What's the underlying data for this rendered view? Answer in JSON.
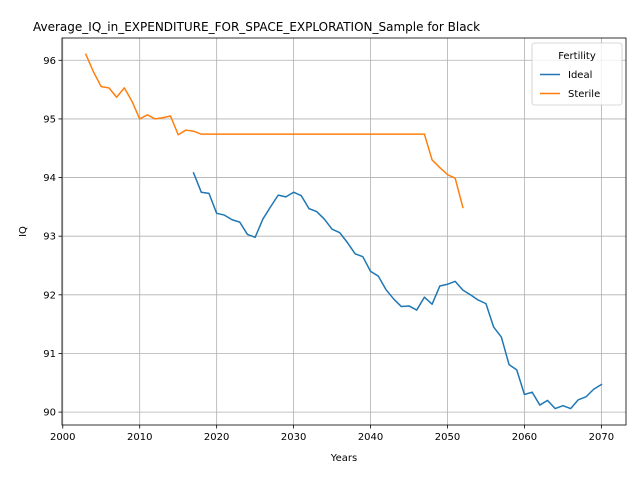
{
  "chart_data": {
    "type": "line",
    "title": "Average_IQ_in_EXPENDITURE_FOR_SPACE_EXPLORATION_Sample for Black",
    "xlabel": "Years",
    "ylabel": "IQ",
    "xlim": [
      1999.9,
      2073.2
    ],
    "ylim": [
      89.78,
      96.38
    ],
    "x_ticks": [
      2000,
      2010,
      2020,
      2030,
      2040,
      2050,
      2060,
      2070
    ],
    "y_ticks": [
      90,
      91,
      92,
      93,
      94,
      95,
      96
    ],
    "grid": true,
    "legend": {
      "title": "Fertility",
      "placement": "top-right"
    },
    "series": [
      {
        "name": "Ideal",
        "color": "#1f77b4",
        "x": [
          2017,
          2018,
          2019,
          2020,
          2021,
          2022,
          2023,
          2024,
          2025,
          2026,
          2027,
          2028,
          2029,
          2030,
          2031,
          2032,
          2033,
          2034,
          2035,
          2036,
          2037,
          2038,
          2039,
          2040,
          2041,
          2042,
          2043,
          2044,
          2045,
          2046,
          2047,
          2048,
          2049,
          2050,
          2051,
          2052,
          2053,
          2054,
          2055,
          2056,
          2057,
          2058,
          2059,
          2060,
          2061,
          2062,
          2063,
          2064,
          2065,
          2066,
          2067,
          2068,
          2069,
          2070
        ],
        "y": [
          94.08,
          93.75,
          93.73,
          93.39,
          93.36,
          93.28,
          93.24,
          93.03,
          92.98,
          93.29,
          93.5,
          93.7,
          93.67,
          93.75,
          93.69,
          93.47,
          93.42,
          93.29,
          93.12,
          93.06,
          92.89,
          92.7,
          92.65,
          92.4,
          92.32,
          92.09,
          91.93,
          91.8,
          91.81,
          91.74,
          91.96,
          91.84,
          92.15,
          92.18,
          92.23,
          92.08,
          92.0,
          91.91,
          91.85,
          91.45,
          91.28,
          90.81,
          90.72,
          90.3,
          90.34,
          90.12,
          90.2,
          90.06,
          90.11,
          90.06,
          90.21,
          90.26,
          90.39,
          90.47
        ]
      },
      {
        "name": "Sterile",
        "color": "#ff7f0e",
        "x": [
          2003,
          2004,
          2005,
          2006,
          2007,
          2008,
          2009,
          2010,
          2011,
          2012,
          2013,
          2014,
          2015,
          2016,
          2017,
          2018,
          2019,
          2020,
          2021,
          2022,
          2023,
          2024,
          2025,
          2026,
          2027,
          2028,
          2029,
          2030,
          2031,
          2032,
          2033,
          2034,
          2035,
          2036,
          2037,
          2038,
          2039,
          2040,
          2041,
          2042,
          2043,
          2044,
          2045,
          2046,
          2047,
          2048,
          2049,
          2050,
          2051,
          2052
        ],
        "y": [
          96.1,
          95.8,
          95.55,
          95.53,
          95.37,
          95.53,
          95.3,
          95.0,
          95.07,
          95.0,
          95.02,
          95.05,
          94.73,
          94.81,
          94.79,
          94.74,
          94.74,
          94.74,
          94.74,
          94.74,
          94.74,
          94.74,
          94.74,
          94.74,
          94.74,
          94.74,
          94.74,
          94.74,
          94.74,
          94.74,
          94.74,
          94.74,
          94.74,
          94.74,
          94.74,
          94.74,
          94.74,
          94.74,
          94.74,
          94.74,
          94.74,
          94.74,
          94.74,
          94.74,
          94.74,
          94.3,
          94.17,
          94.05,
          93.99,
          93.49
        ]
      }
    ]
  }
}
